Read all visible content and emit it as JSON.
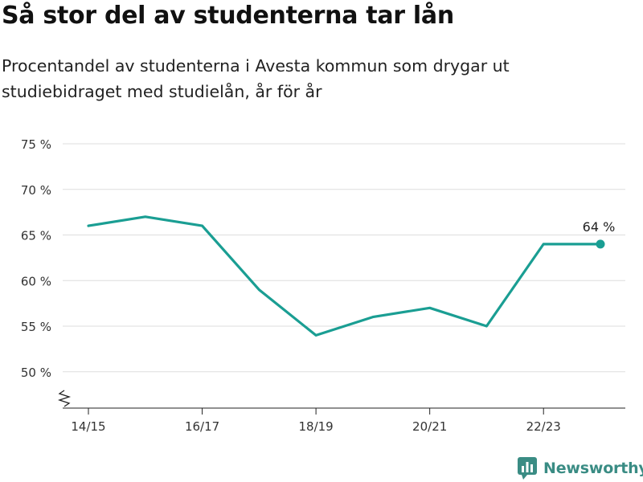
{
  "title": "Så stor del av studenterna tar lån",
  "subtitle": "Procentandel av studenterna i Avesta kommun som drygar ut studiebidraget med studielån, år för år",
  "brand": {
    "name": "Newsworthy",
    "logo_icon": "newsworthy-logo-icon"
  },
  "colors": {
    "line": "#1a9e93",
    "grid": "#dddddd",
    "axis": "#222222",
    "text": "#333333",
    "brand": "#3a8c84"
  },
  "chart_data": {
    "type": "line",
    "title": "Så stor del av studenterna tar lån",
    "subtitle": "Procentandel av studenterna i Avesta kommun som drygar ut studiebidraget med studielån, år för år",
    "x": [
      "14/15",
      "15/16",
      "16/17",
      "17/18",
      "18/19",
      "19/20",
      "20/21",
      "21/22",
      "22/23",
      "23/24"
    ],
    "x_tick_labels": [
      "14/15",
      "16/17",
      "18/19",
      "20/21",
      "22/23"
    ],
    "y_ticks": [
      50,
      55,
      60,
      65,
      70,
      75
    ],
    "y_tick_labels": [
      "50 %",
      "55 %",
      "60 %",
      "65 %",
      "70 %",
      "75 %"
    ],
    "ylim": [
      45,
      75
    ],
    "axis_break": true,
    "grid": true,
    "series": [
      {
        "values": [
          66,
          67,
          66,
          59,
          54,
          56,
          57,
          55,
          64,
          64
        ]
      }
    ],
    "end_label": "64 %"
  }
}
